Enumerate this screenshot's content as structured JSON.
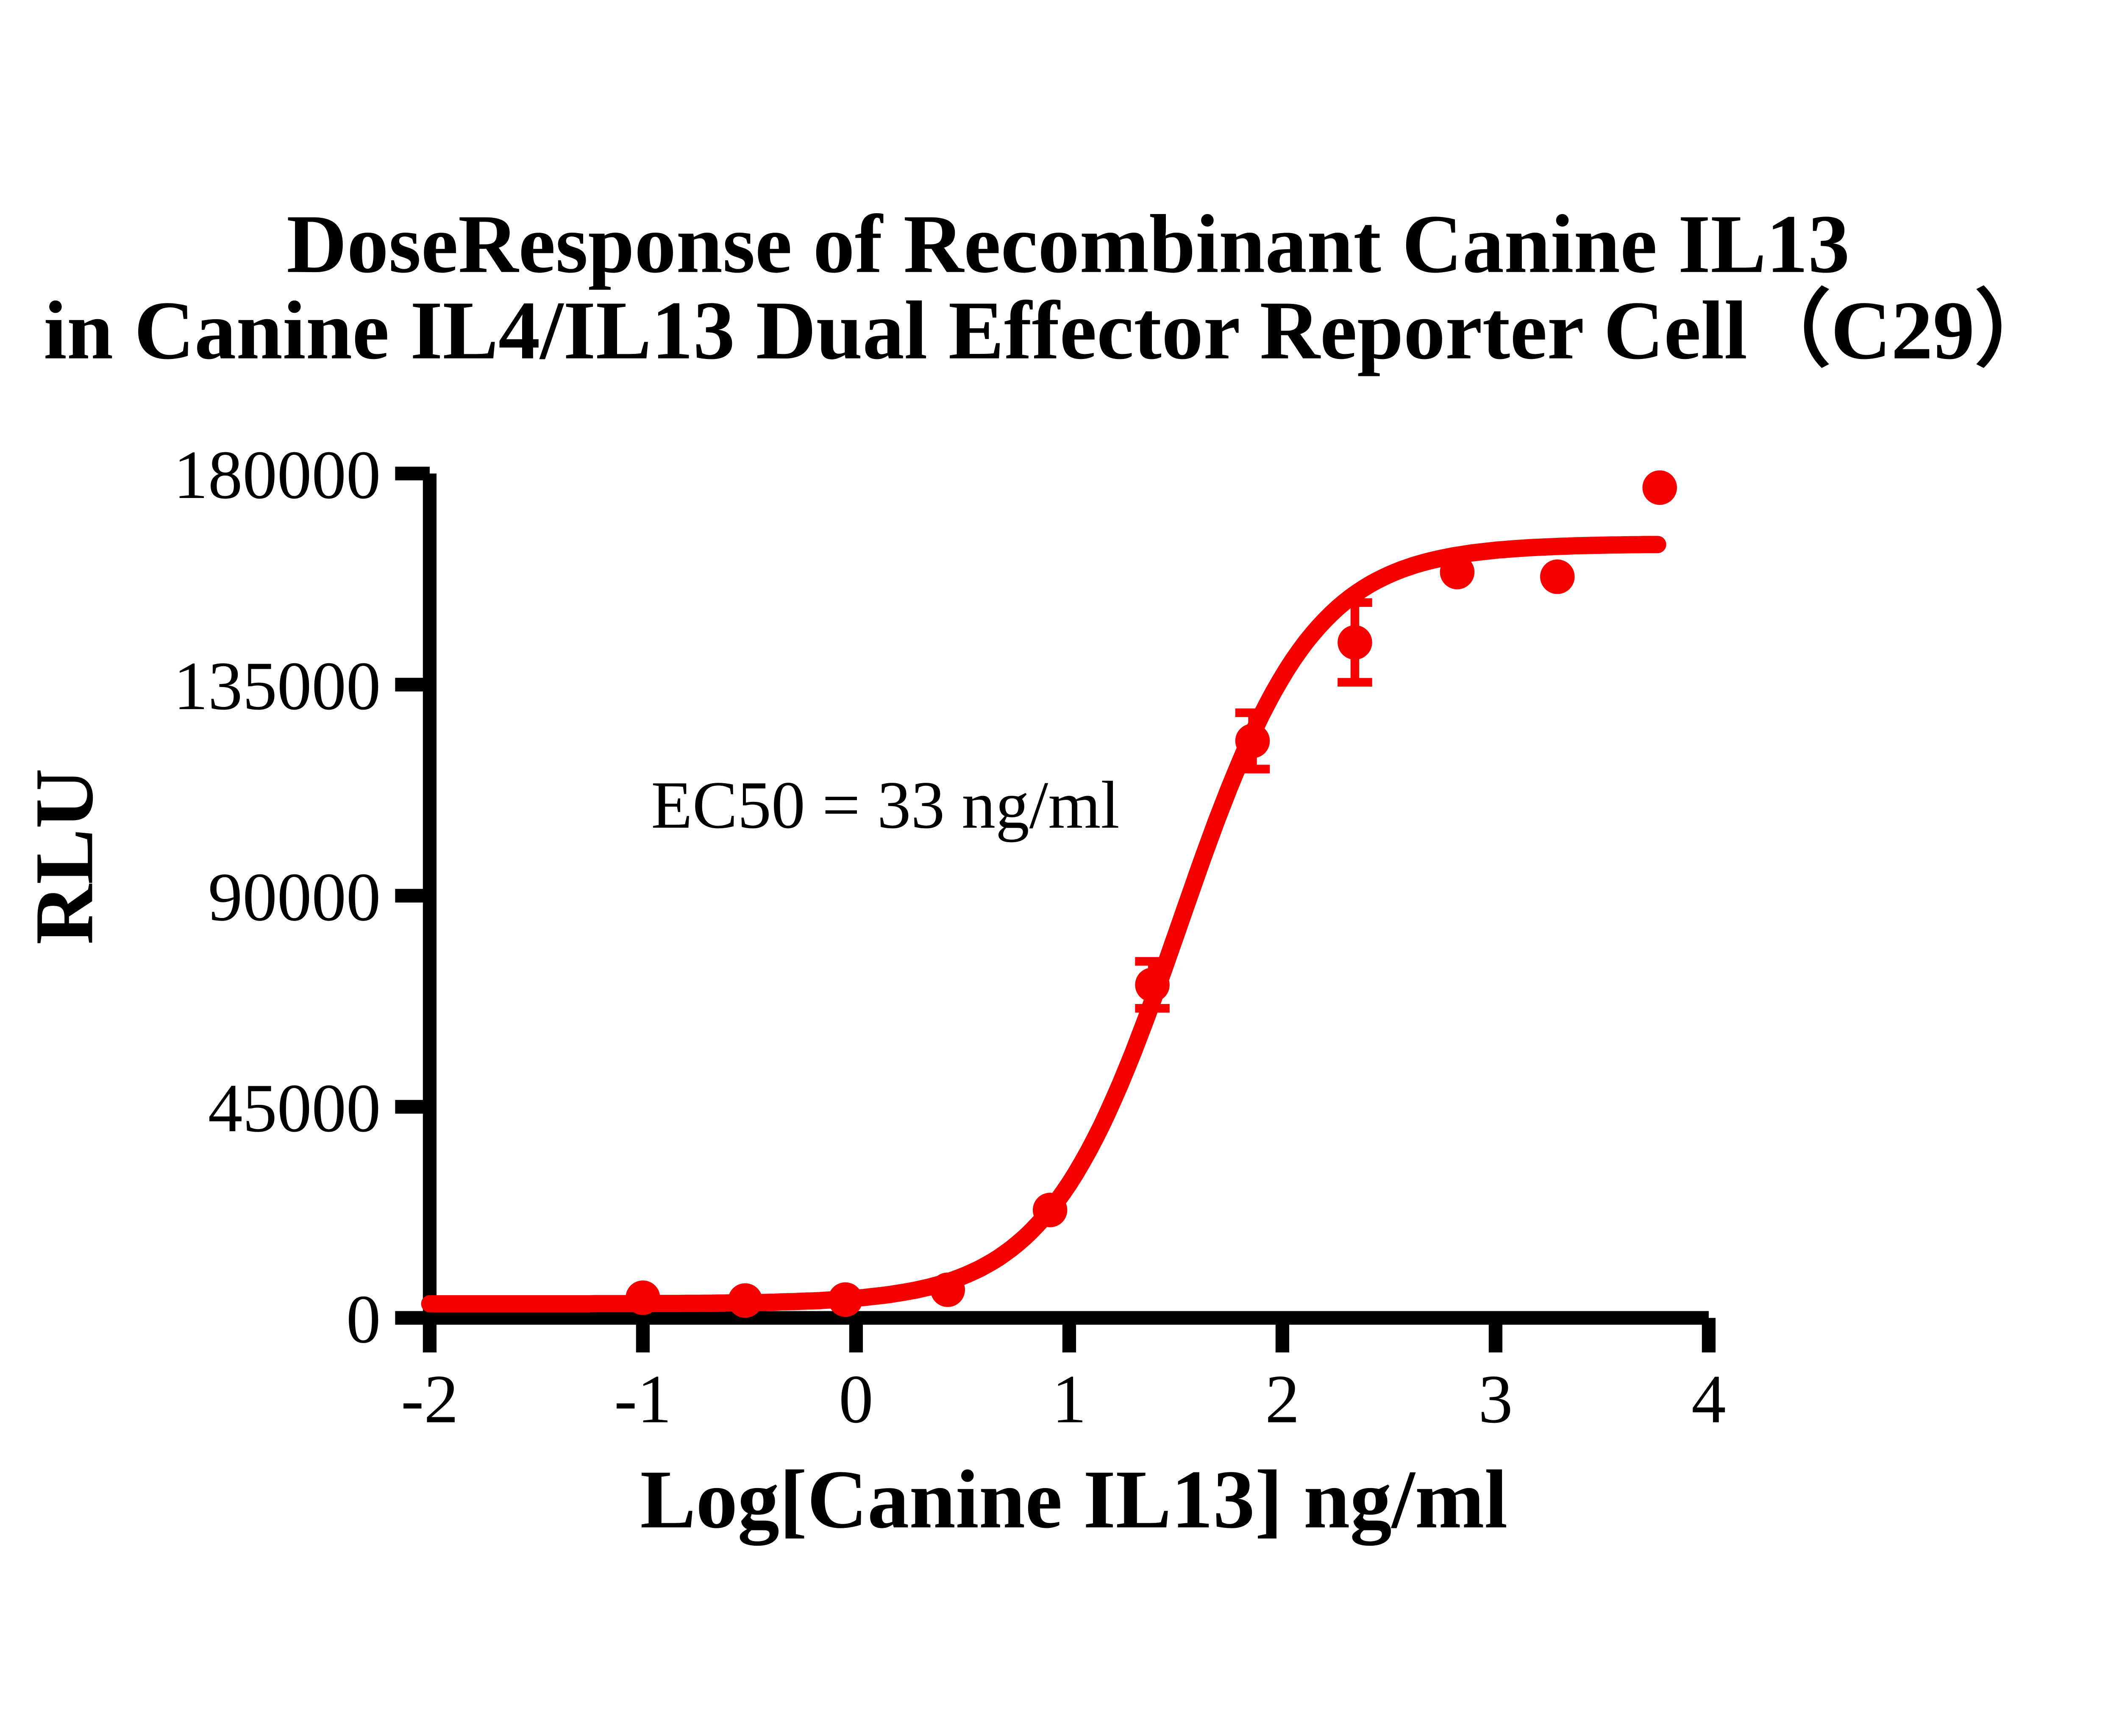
{
  "title": {
    "line1": "DoseResponse of Recombinant Canine IL13",
    "line2": "in Canine IL4/IL13 Dual Effector Reporter Cell（C29）"
  },
  "annotation": {
    "ec50": "EC50 = 33 ng/ml"
  },
  "axes": {
    "x": {
      "label": "Log[Canine IL13] ng/ml",
      "ticks": [
        -2,
        -1,
        0,
        1,
        2,
        3,
        4
      ],
      "range": [
        -2,
        4
      ]
    },
    "y": {
      "label": "RLU",
      "ticks": [
        0,
        45000,
        90000,
        135000,
        180000
      ],
      "range": [
        0,
        180000
      ]
    }
  },
  "colors": {
    "series": "#f70000",
    "axis": "#000000",
    "background": "#ffffff"
  },
  "chart_data": {
    "type": "scatter",
    "title": "DoseResponse of Recombinant Canine IL13 in Canine IL4/IL13 Dual Effector Reporter Cell（C29）",
    "xlabel": "Log[Canine IL13] ng/ml",
    "ylabel": "RLU",
    "xlim": [
      -2,
      4
    ],
    "ylim": [
      0,
      180000
    ],
    "x_ticks": [
      -2,
      -1,
      0,
      1,
      2,
      3,
      4
    ],
    "y_ticks": [
      0,
      45000,
      90000,
      135000,
      180000
    ],
    "grid": false,
    "legend": "none",
    "annotation": "EC50 = 33 ng/ml",
    "series": [
      {
        "name": "Canine IL13",
        "marker": "circle",
        "color": "#f70000",
        "points": [
          {
            "x": -1.0,
            "y": 4300,
            "err": 0
          },
          {
            "x": -0.52,
            "y": 3700,
            "err": 0
          },
          {
            "x": -0.05,
            "y": 3900,
            "err": 0
          },
          {
            "x": 0.43,
            "y": 6000,
            "err": 0
          },
          {
            "x": 0.91,
            "y": 23000,
            "err": 0
          },
          {
            "x": 1.39,
            "y": 71000,
            "err": 5000
          },
          {
            "x": 1.86,
            "y": 123000,
            "err": 6000
          },
          {
            "x": 2.34,
            "y": 144000,
            "err": 8500
          },
          {
            "x": 2.82,
            "y": 159000,
            "err": 0
          },
          {
            "x": 3.29,
            "y": 158000,
            "err": 0
          },
          {
            "x": 3.77,
            "y": 177000,
            "err": 0
          }
        ]
      }
    ],
    "fit_curve": {
      "model": "4PL",
      "bottom": 3000,
      "top": 165000,
      "logEC50": 1.5185,
      "hill": 1.4,
      "x_start": -2.0,
      "x_end": 3.77,
      "ec50_ng_ml": 33
    }
  }
}
